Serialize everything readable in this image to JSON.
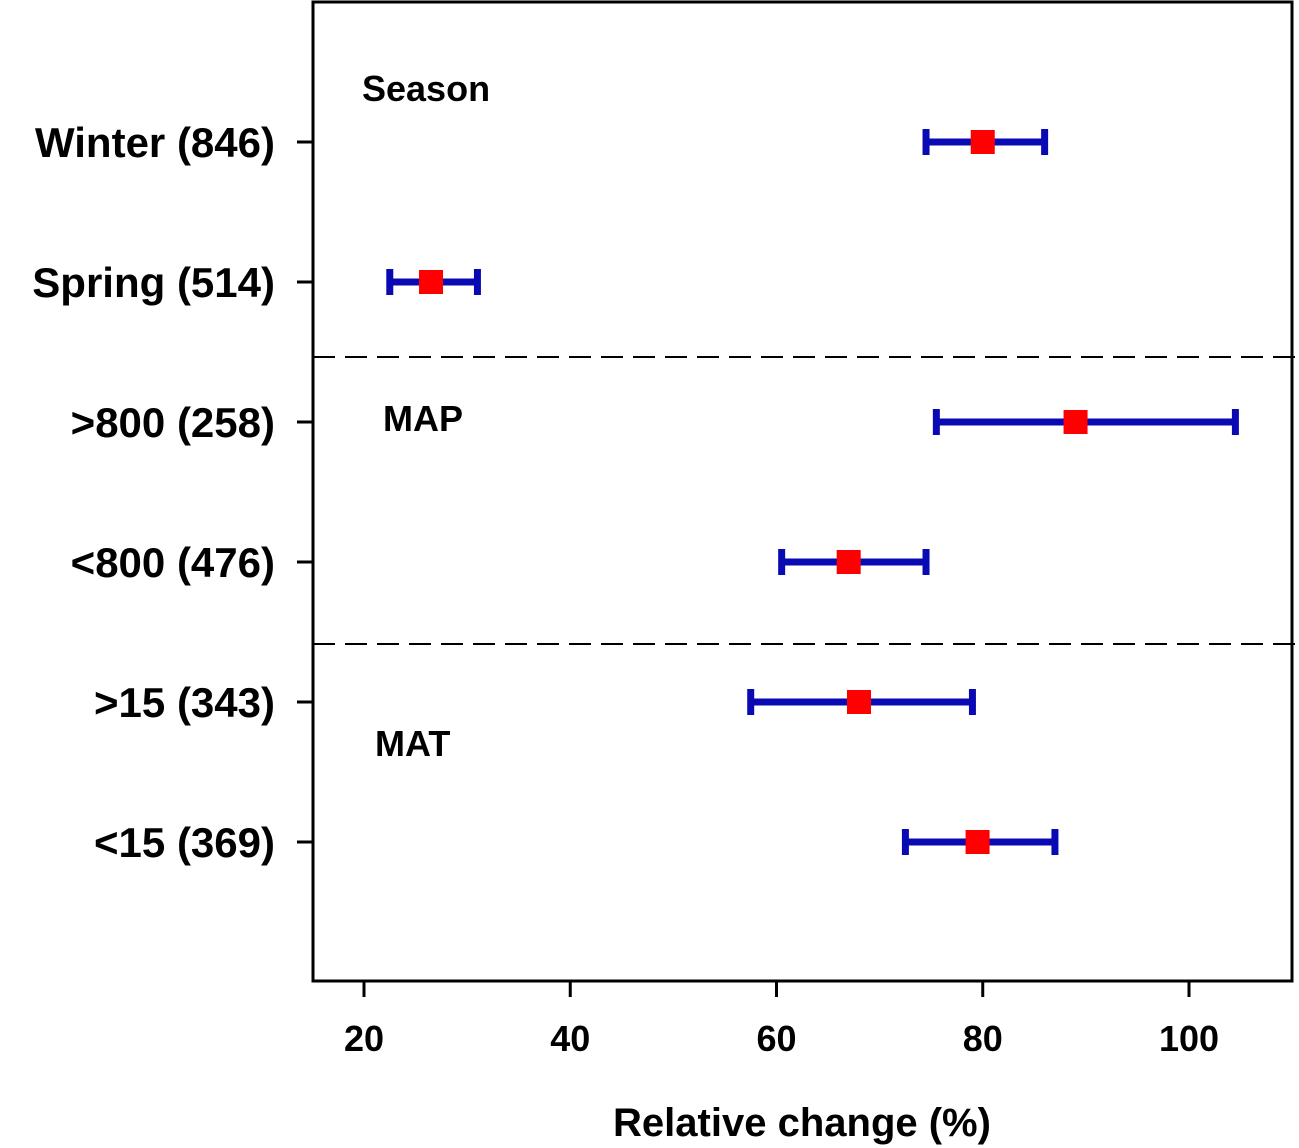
{
  "chart_data": {
    "type": "forest",
    "xlabel": "Relative change (%)",
    "xlim": [
      15,
      110
    ],
    "xticks": [
      20,
      40,
      60,
      80,
      100
    ],
    "xtick_labels": [
      "20",
      "40",
      "60",
      "80",
      "100"
    ],
    "groups": [
      {
        "name": "Season",
        "label": "Season"
      },
      {
        "name": "MAP",
        "label": "MAP"
      },
      {
        "name": "MAT",
        "label": "MAT"
      }
    ],
    "rows": [
      {
        "label": "Winter (846)",
        "group": "Season",
        "mean": 80.0,
        "lower": 74.5,
        "upper": 86.0
      },
      {
        "label": "Spring (514)",
        "group": "Season",
        "mean": 26.5,
        "lower": 22.5,
        "upper": 31.0
      },
      {
        "label": ">800 (258)",
        "group": "MAP",
        "mean": 89.0,
        "lower": 75.5,
        "upper": 104.5
      },
      {
        "label": "<800 (476)",
        "group": "MAP",
        "mean": 67.0,
        "lower": 60.5,
        "upper": 74.5
      },
      {
        "label": ">15 (343)",
        "group": "MAT",
        "mean": 68.0,
        "lower": 57.5,
        "upper": 79.0
      },
      {
        "label": "<15 (369)",
        "group": "MAT",
        "mean": 79.5,
        "lower": 72.5,
        "upper": 87.0
      }
    ],
    "colors": {
      "point": "#ff0000",
      "error_bar": "#0a0ab4",
      "separator": "#000000"
    }
  }
}
